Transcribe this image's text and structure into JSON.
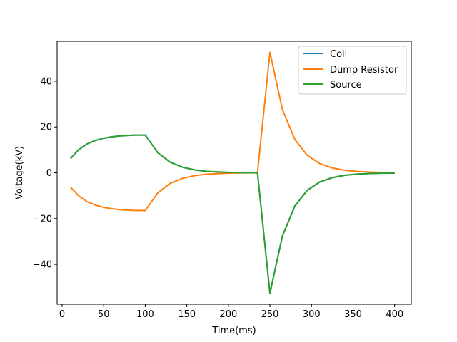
{
  "chart_data": {
    "type": "line",
    "title": "",
    "xlabel": "Time(ms)",
    "ylabel": "Voltage(kV)",
    "xlim": [
      -6,
      420
    ],
    "ylim": [
      -57.4,
      57.4
    ],
    "xticks": [
      0,
      50,
      100,
      150,
      200,
      250,
      300,
      350,
      400
    ],
    "yticks": [
      -40,
      -20,
      0,
      20,
      40
    ],
    "tick_labels_y": [
      "−40",
      "−20",
      "0",
      "20",
      "40"
    ],
    "tick_labels_x": [
      "0",
      "50",
      "100",
      "150",
      "200",
      "250",
      "300",
      "350",
      "400"
    ],
    "grid": false,
    "legend_position": "top-right",
    "series": [
      {
        "name": "Coil",
        "color": "#1f77b4",
        "x": [
          10,
          20,
          30,
          40,
          50,
          60,
          70,
          85,
          100,
          115,
          130,
          145,
          160,
          175,
          190,
          205,
          220,
          235,
          250,
          265,
          280,
          295,
          310,
          325,
          340,
          355,
          370,
          385,
          400
        ],
        "y": [
          6.2,
          10.1,
          12.6,
          14.1,
          15.1,
          15.7,
          16.1,
          16.4,
          16.5,
          8.8,
          4.6,
          2.4,
          1.2,
          0.6,
          0.3,
          0.1,
          0.05,
          0.0,
          -52.6,
          -27.6,
          -14.5,
          -7.6,
          -4.0,
          -2.1,
          -1.1,
          -0.6,
          -0.3,
          -0.15,
          -0.1
        ]
      },
      {
        "name": "Dump Resistor",
        "color": "#ff7f0e",
        "x": [
          10,
          20,
          30,
          40,
          50,
          60,
          70,
          85,
          100,
          115,
          130,
          145,
          160,
          175,
          190,
          205,
          220,
          235,
          250,
          265,
          280,
          295,
          310,
          325,
          340,
          355,
          370,
          385,
          400
        ],
        "y": [
          -6.2,
          -10.1,
          -12.6,
          -14.1,
          -15.1,
          -15.7,
          -16.1,
          -16.4,
          -16.5,
          -8.8,
          -4.6,
          -2.4,
          -1.2,
          -0.6,
          -0.3,
          -0.1,
          -0.05,
          0.0,
          52.6,
          27.6,
          14.5,
          7.6,
          4.0,
          2.1,
          1.1,
          0.6,
          0.3,
          0.15,
          0.1
        ]
      },
      {
        "name": "Source",
        "color": "#2ca02c",
        "x": [
          10,
          20,
          30,
          40,
          50,
          60,
          70,
          85,
          100,
          115,
          130,
          145,
          160,
          175,
          190,
          205,
          220,
          235,
          250,
          265,
          280,
          295,
          310,
          325,
          340,
          355,
          370,
          385,
          400
        ],
        "y": [
          6.2,
          10.1,
          12.6,
          14.1,
          15.1,
          15.7,
          16.1,
          16.4,
          16.5,
          8.8,
          4.6,
          2.4,
          1.2,
          0.6,
          0.3,
          0.1,
          0.05,
          0.0,
          -52.6,
          -27.6,
          -14.5,
          -7.6,
          -4.0,
          -2.1,
          -1.1,
          -0.6,
          -0.3,
          -0.15,
          -0.1
        ]
      }
    ]
  }
}
